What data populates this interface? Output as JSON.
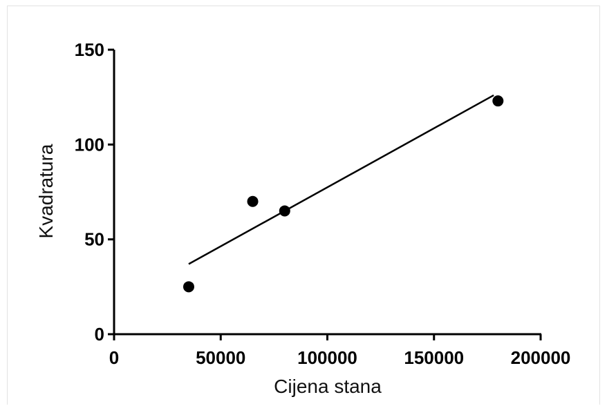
{
  "chart_data": {
    "type": "scatter",
    "title": "",
    "xlabel": "Cijena stana",
    "ylabel": "Kvadratura",
    "xlim": [
      0,
      200000
    ],
    "ylim": [
      0,
      150
    ],
    "x_ticks": [
      0,
      50000,
      100000,
      150000,
      200000
    ],
    "x_tick_labels": [
      "0",
      "50000",
      "100000",
      "150000",
      "200000"
    ],
    "y_ticks": [
      0,
      50,
      100,
      150
    ],
    "y_tick_labels": [
      "0",
      "50",
      "100",
      "150"
    ],
    "grid": false,
    "legend": "none",
    "series": [
      {
        "points": [
          {
            "x": 35000,
            "y": 25
          },
          {
            "x": 65000,
            "y": 70
          },
          {
            "x": 80000,
            "y": 65
          },
          {
            "x": 180000,
            "y": 123
          }
        ]
      }
    ],
    "fit_line": {
      "x": [
        35000,
        178000
      ],
      "y": [
        37,
        126
      ]
    },
    "colors": {
      "points": "#000000",
      "line": "#000000",
      "axes": "#000000"
    }
  }
}
